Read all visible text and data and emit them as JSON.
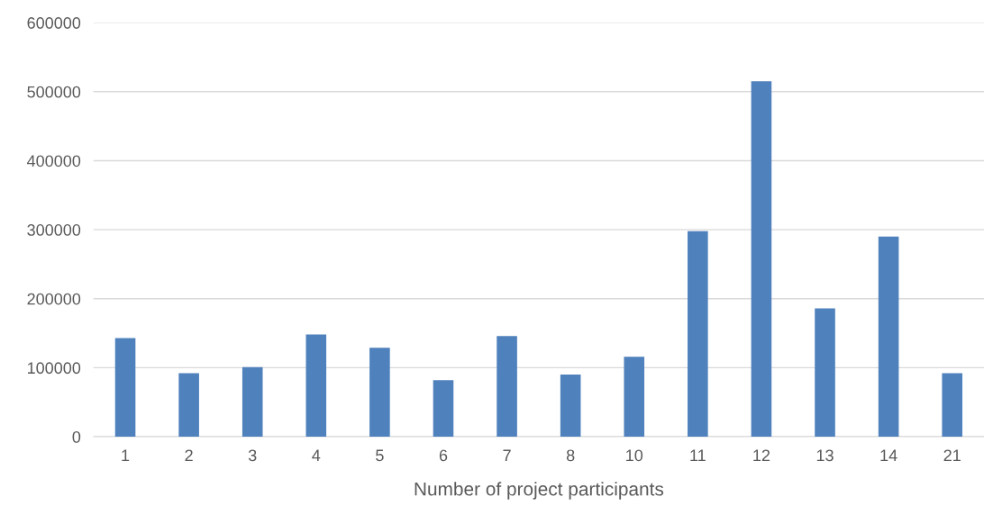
{
  "chart_data": {
    "type": "bar",
    "xlabel": "Number of project participants",
    "categories": [
      "1",
      "2",
      "3",
      "4",
      "5",
      "6",
      "7",
      "8",
      "10",
      "11",
      "12",
      "13",
      "14",
      "21"
    ],
    "values": [
      143000,
      92000,
      101000,
      148000,
      129000,
      82000,
      146000,
      90000,
      116000,
      298000,
      515000,
      186000,
      290000,
      92000
    ],
    "color": "#4f81bd",
    "ylim": [
      0,
      600000
    ],
    "yticks": [
      0,
      100000,
      200000,
      300000,
      400000,
      500000,
      600000
    ],
    "grid": "y",
    "legend": false
  }
}
